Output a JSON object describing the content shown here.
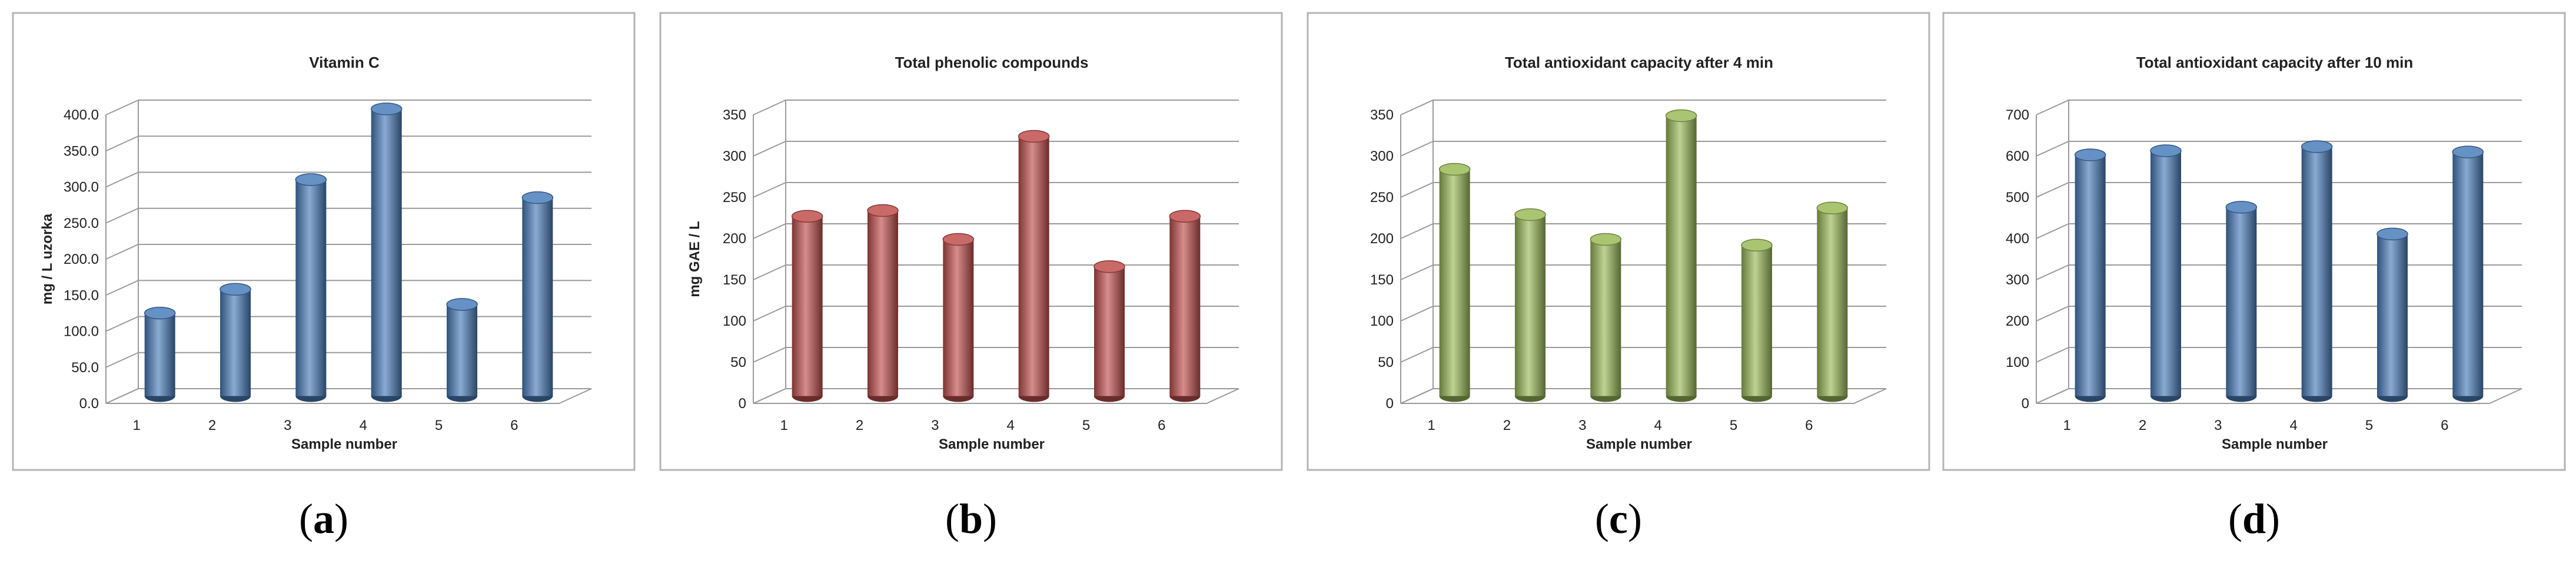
{
  "style": {
    "frame_color": "#b4b4b4",
    "grid_color": "#9a9a9a",
    "text_color": "#222222"
  },
  "chart_data": [
    {
      "type": "bar",
      "title": "Vitamin C",
      "xlabel": "Sample number",
      "ylabel": "mg /  L uzorka",
      "categories": [
        "1",
        "2",
        "3",
        "4",
        "5",
        "6"
      ],
      "values": [
        115,
        148,
        300,
        398,
        127,
        275
      ],
      "ylim": [
        0,
        400
      ],
      "yticks": [
        "0.0",
        "50.0",
        "100.0",
        "150.0",
        "200.0",
        "250.0",
        "300.0",
        "350.0",
        "400.0"
      ],
      "bar_color": "#4a7ebb",
      "grid": true,
      "style_3d": true,
      "caption": "a"
    },
    {
      "type": "bar",
      "title": "Total phenolic compounds",
      "xlabel": "Sample number",
      "ylabel": "mg GAE / L",
      "categories": [
        "1",
        "2",
        "3",
        "4",
        "5",
        "6"
      ],
      "values": [
        218,
        225,
        190,
        315,
        157,
        218
      ],
      "ylim": [
        0,
        350
      ],
      "yticks": [
        "0",
        "50",
        "100",
        "150",
        "200",
        "250",
        "300",
        "350"
      ],
      "bar_color": "#c0504d",
      "grid": true,
      "style_3d": true,
      "caption": "b"
    },
    {
      "type": "bar",
      "title": "Total antioxidant capacity after 4 min",
      "xlabel": "Sample number",
      "ylabel": "",
      "categories": [
        "1",
        "2",
        "3",
        "4",
        "5",
        "6"
      ],
      "values": [
        275,
        220,
        190,
        340,
        183,
        228
      ],
      "ylim": [
        0,
        350
      ],
      "yticks": [
        "0",
        "50",
        "100",
        "150",
        "200",
        "250",
        "300",
        "350"
      ],
      "bar_color": "#9bbb59",
      "grid": true,
      "style_3d": true,
      "caption": "c"
    },
    {
      "type": "bar",
      "title": "Total antioxidant capacity after 10 min",
      "xlabel": "Sample number",
      "ylabel": "",
      "categories": [
        "1",
        "2",
        "3",
        "4",
        "5",
        "6"
      ],
      "values": [
        585,
        595,
        458,
        605,
        393,
        592
      ],
      "ylim": [
        0,
        700
      ],
      "yticks": [
        "0",
        "100",
        "200",
        "300",
        "400",
        "500",
        "600",
        "700"
      ],
      "bar_color": "#4a7ebb",
      "grid": true,
      "style_3d": true,
      "caption": "d"
    }
  ]
}
